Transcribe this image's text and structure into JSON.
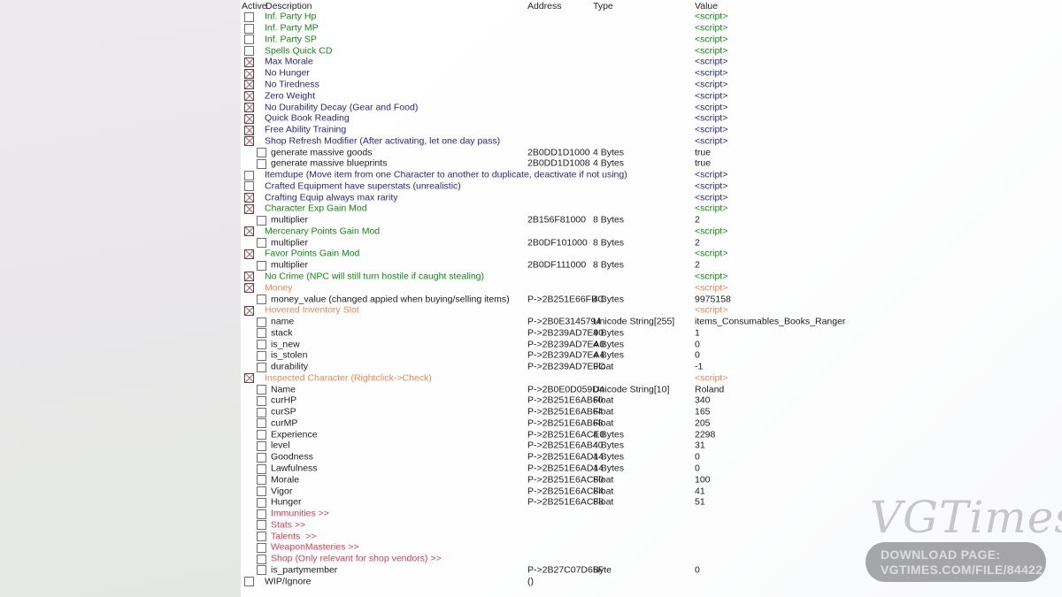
{
  "header": {
    "columns": [
      "Active",
      "Description",
      "Address",
      "Type",
      "Value"
    ]
  },
  "colors": {
    "green": "#0f8c0f",
    "blue": "#26268c",
    "orange": "#ea8a54",
    "red": "#d84050",
    "black": "#1b1b1b"
  },
  "rows": [
    {
      "desc": "Inf. Party Hp",
      "color": "green",
      "checked": false,
      "indent": 0,
      "address": "",
      "type": "",
      "value": "<script>",
      "vcolor": "green"
    },
    {
      "desc": "Inf. Party MP",
      "color": "green",
      "checked": false,
      "indent": 0,
      "address": "",
      "type": "",
      "value": "<script>",
      "vcolor": "green"
    },
    {
      "desc": "Inf. Party SP",
      "color": "green",
      "checked": false,
      "indent": 0,
      "address": "",
      "type": "",
      "value": "<script>",
      "vcolor": "green"
    },
    {
      "desc": "Spells Quick CD",
      "color": "green",
      "checked": false,
      "indent": 0,
      "address": "",
      "type": "",
      "value": "<script>",
      "vcolor": "green"
    },
    {
      "desc": "Max Morale",
      "color": "blue",
      "checked": true,
      "indent": 0,
      "address": "",
      "type": "",
      "value": "<script>",
      "vcolor": "blue"
    },
    {
      "desc": "No Hunger",
      "color": "blue",
      "checked": true,
      "indent": 0,
      "address": "",
      "type": "",
      "value": "<script>",
      "vcolor": "blue"
    },
    {
      "desc": "No Tiredness",
      "color": "blue",
      "checked": true,
      "indent": 0,
      "address": "",
      "type": "",
      "value": "<script>",
      "vcolor": "blue"
    },
    {
      "desc": "Zero Weight",
      "color": "blue",
      "checked": true,
      "indent": 0,
      "address": "",
      "type": "",
      "value": "<script>",
      "vcolor": "blue"
    },
    {
      "desc": "No Durability Decay (Gear and Food)",
      "color": "blue",
      "checked": true,
      "indent": 0,
      "address": "",
      "type": "",
      "value": "<script>",
      "vcolor": "blue"
    },
    {
      "desc": "Quick Book Reading",
      "color": "blue",
      "checked": true,
      "indent": 0,
      "address": "",
      "type": "",
      "value": "<script>",
      "vcolor": "blue"
    },
    {
      "desc": "Free Ability Training",
      "color": "blue",
      "checked": true,
      "indent": 0,
      "address": "",
      "type": "",
      "value": "<script>",
      "vcolor": "blue"
    },
    {
      "desc": "Shop Refresh Modifier (After activating, let one day pass)",
      "color": "blue",
      "checked": true,
      "indent": 0,
      "address": "",
      "type": "",
      "value": "<script>",
      "vcolor": "blue"
    },
    {
      "desc": "generate massive goods",
      "color": "black",
      "checked": false,
      "indent": 1,
      "address": "2B0DD1D1000",
      "type": "4 Bytes",
      "value": "true",
      "vcolor": "black"
    },
    {
      "desc": "generate massive blueprints",
      "color": "black",
      "checked": false,
      "indent": 1,
      "address": "2B0DD1D1008",
      "type": "4 Bytes",
      "value": "true",
      "vcolor": "black"
    },
    {
      "desc": "Itemdupe (Move item from one Character to another to duplicate, deactivate if not using)",
      "color": "blue",
      "checked": false,
      "indent": 0,
      "address": "",
      "type": "",
      "value": "<script>",
      "vcolor": "blue"
    },
    {
      "desc": "Crafted Equipment have superstats (unrealistic)",
      "color": "blue",
      "checked": false,
      "indent": 0,
      "address": "",
      "type": "",
      "value": "<script>",
      "vcolor": "blue"
    },
    {
      "desc": "Crafting Equip always max rarity",
      "color": "blue",
      "checked": true,
      "indent": 0,
      "address": "",
      "type": "",
      "value": "<script>",
      "vcolor": "blue"
    },
    {
      "desc": "Character Exp Gain Mod",
      "color": "green",
      "checked": true,
      "indent": 0,
      "address": "",
      "type": "",
      "value": "<script>",
      "vcolor": "green"
    },
    {
      "desc": "multiplier",
      "color": "black",
      "checked": false,
      "indent": 1,
      "address": "2B156F81000",
      "type": "8 Bytes",
      "value": "2",
      "vcolor": "black"
    },
    {
      "desc": "Mercenary Points Gain Mod",
      "color": "green",
      "checked": true,
      "indent": 0,
      "address": "",
      "type": "",
      "value": "<script>",
      "vcolor": "green"
    },
    {
      "desc": "multiplier",
      "color": "black",
      "checked": false,
      "indent": 1,
      "address": "2B0DF101000",
      "type": "8 Bytes",
      "value": "2",
      "vcolor": "black"
    },
    {
      "desc": "Favor Points Gain Mod",
      "color": "green",
      "checked": true,
      "indent": 0,
      "address": "",
      "type": "",
      "value": "<script>",
      "vcolor": "green"
    },
    {
      "desc": "multiplier",
      "color": "black",
      "checked": false,
      "indent": 1,
      "address": "2B0DF111000",
      "type": "8 Bytes",
      "value": "2",
      "vcolor": "black"
    },
    {
      "desc": "No Crime (NPC will still turn hostile if caught stealing)",
      "color": "green",
      "checked": true,
      "indent": 0,
      "address": "",
      "type": "",
      "value": "<script>",
      "vcolor": "green"
    },
    {
      "desc": "Money",
      "color": "orange",
      "checked": true,
      "indent": 0,
      "address": "",
      "type": "",
      "value": "<script>",
      "vcolor": "orange"
    },
    {
      "desc": "money_value (changed appied when buying/selling items)",
      "color": "black",
      "checked": false,
      "indent": 1,
      "address": "P->2B251E66FBC",
      "type": "4 Bytes",
      "value": "9975158",
      "vcolor": "black"
    },
    {
      "desc": "Hovered Inventory Slot",
      "color": "orange",
      "checked": true,
      "indent": 0,
      "address": "",
      "type": "",
      "value": "<script>",
      "vcolor": "orange"
    },
    {
      "desc": "name",
      "color": "black",
      "checked": false,
      "indent": 1,
      "address": "P->2B0E3145794",
      "type": "Unicode String[255]",
      "value": "items_Consumables_Books_Ranger",
      "vcolor": "black"
    },
    {
      "desc": "stack",
      "color": "black",
      "checked": false,
      "indent": 1,
      "address": "P->2B239AD7E90",
      "type": "4 Bytes",
      "value": "1",
      "vcolor": "black"
    },
    {
      "desc": "is_new",
      "color": "black",
      "checked": false,
      "indent": 1,
      "address": "P->2B239AD7EA0",
      "type": "4 Bytes",
      "value": "0",
      "vcolor": "black"
    },
    {
      "desc": "is_stolen",
      "color": "black",
      "checked": false,
      "indent": 1,
      "address": "P->2B239AD7EA4",
      "type": "4 Bytes",
      "value": "0",
      "vcolor": "black"
    },
    {
      "desc": "durability",
      "color": "black",
      "checked": false,
      "indent": 1,
      "address": "P->2B239AD7E9C",
      "type": "Float",
      "value": "-1",
      "vcolor": "black"
    },
    {
      "desc": "Inspected Character (Rightclick->Check)",
      "color": "orange",
      "checked": true,
      "indent": 0,
      "address": "",
      "type": "",
      "value": "<script>",
      "vcolor": "orange"
    },
    {
      "desc": "Name",
      "color": "black",
      "checked": false,
      "indent": 1,
      "address": "P->2B0E0D059D4",
      "type": "Unicode String[10]",
      "value": "Roland",
      "vcolor": "black"
    },
    {
      "desc": "curHP",
      "color": "black",
      "checked": false,
      "indent": 1,
      "address": "P->2B251E6AB60",
      "type": "Float",
      "value": "340",
      "vcolor": "black"
    },
    {
      "desc": "curSP",
      "color": "black",
      "checked": false,
      "indent": 1,
      "address": "P->2B251E6AB64",
      "type": "Float",
      "value": "165",
      "vcolor": "black"
    },
    {
      "desc": "curMP",
      "color": "black",
      "checked": false,
      "indent": 1,
      "address": "P->2B251E6AB68",
      "type": "Float",
      "value": "205",
      "vcolor": "black"
    },
    {
      "desc": "Experience",
      "color": "black",
      "checked": false,
      "indent": 1,
      "address": "P->2B251E6ACE0",
      "type": "4 Bytes",
      "value": "2298",
      "vcolor": "black"
    },
    {
      "desc": "level",
      "color": "black",
      "checked": false,
      "indent": 1,
      "address": "P->2B251E6AB40",
      "type": "4 Bytes",
      "value": "31",
      "vcolor": "black"
    },
    {
      "desc": "Goodness",
      "color": "black",
      "checked": false,
      "indent": 1,
      "address": "P->2B251E6AD14",
      "type": "4 Bytes",
      "value": "0",
      "vcolor": "black"
    },
    {
      "desc": "Lawfulness",
      "color": "black",
      "checked": false,
      "indent": 1,
      "address": "P->2B251E6AD14",
      "type": "4 Bytes",
      "value": "0",
      "vcolor": "black"
    },
    {
      "desc": "Morale",
      "color": "black",
      "checked": false,
      "indent": 1,
      "address": "P->2B251E6AC80",
      "type": "Float",
      "value": "100",
      "vcolor": "black"
    },
    {
      "desc": "Vigor",
      "color": "black",
      "checked": false,
      "indent": 1,
      "address": "P->2B251E6AC84",
      "type": "Float",
      "value": "41",
      "vcolor": "black"
    },
    {
      "desc": "Hunger",
      "color": "black",
      "checked": false,
      "indent": 1,
      "address": "P->2B251E6AC88",
      "type": "Float",
      "value": "51",
      "vcolor": "black"
    },
    {
      "desc": "Immunities >>",
      "color": "red",
      "checked": false,
      "indent": 1,
      "address": "",
      "type": "",
      "value": "",
      "vcolor": "black"
    },
    {
      "desc": "Stats >>",
      "color": "red",
      "checked": false,
      "indent": 1,
      "address": "",
      "type": "",
      "value": "",
      "vcolor": "black"
    },
    {
      "desc": "Talents  >>",
      "color": "red",
      "checked": false,
      "indent": 1,
      "address": "",
      "type": "",
      "value": "",
      "vcolor": "black"
    },
    {
      "desc": "WeaponMasteries >>",
      "color": "red",
      "checked": false,
      "indent": 1,
      "address": "",
      "type": "",
      "value": "",
      "vcolor": "black"
    },
    {
      "desc": "Shop (Only relevant for shop vendors) >>",
      "color": "red",
      "checked": false,
      "indent": 1,
      "address": "",
      "type": "",
      "value": "",
      "vcolor": "black"
    },
    {
      "desc": "is_partymember",
      "color": "black",
      "checked": false,
      "indent": 1,
      "address": "P->2B27C07D65F",
      "type": "Byte",
      "value": "0",
      "vcolor": "black"
    },
    {
      "desc": "WIP/Ignore",
      "color": "black",
      "checked": false,
      "indent": 0,
      "address": "()",
      "type": "",
      "value": "",
      "vcolor": "black"
    }
  ],
  "watermark": {
    "logo": "VGTimes",
    "download_line1": "DOWNLOAD PAGE:",
    "download_line2": "VGTIMES.COM/FILE/84422"
  }
}
